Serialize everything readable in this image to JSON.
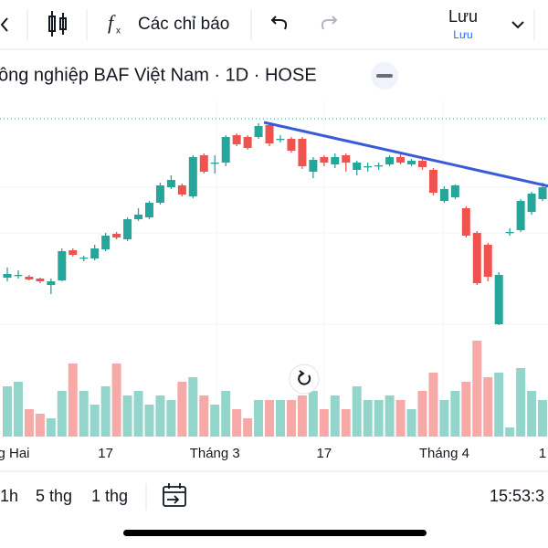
{
  "toolbar": {
    "indicators": "Các chỉ báo",
    "save": "Lưu",
    "save_sub": "Lưu"
  },
  "legend": {
    "title": "ông nghiệp BAF Việt Nam · 1D · HOSE"
  },
  "footer": {
    "ranges": [
      "1h",
      "5 thg",
      "1 thg"
    ],
    "time": "15:53:3"
  },
  "chart_data": {
    "type": "candlestick",
    "categories": [
      "g Hai",
      null,
      null,
      null,
      null,
      null,
      null,
      null,
      null,
      "17",
      null,
      null,
      null,
      null,
      null,
      null,
      null,
      null,
      null,
      "Tháng 3",
      null,
      null,
      null,
      null,
      null,
      null,
      null,
      null,
      null,
      "17",
      null,
      null,
      null,
      null,
      null,
      null,
      null,
      null,
      null,
      null,
      "Tháng 4",
      null,
      null,
      null,
      null,
      null,
      null,
      null,
      null,
      "1"
    ],
    "open": [
      96,
      99,
      97,
      95,
      88,
      93,
      126,
      117,
      117,
      127,
      144,
      138,
      160,
      162,
      178,
      195,
      197,
      185,
      230,
      222,
      222,
      252,
      250,
      250,
      263,
      248,
      248,
      248,
      212,
      228,
      220,
      230,
      214,
      218,
      218,
      220,
      228,
      220,
      224,
      214,
      180,
      184,
      172,
      145,
      132,
      45,
      145,
      148,
      168,
      182
    ],
    "high": [
      107,
      104,
      99,
      96,
      95,
      128,
      128,
      120,
      132,
      145,
      146,
      162,
      172,
      180,
      200,
      208,
      199,
      230,
      232,
      230,
      252,
      254,
      252,
      265,
      265,
      252,
      250,
      250,
      228,
      230,
      232,
      232,
      224,
      222,
      222,
      230,
      232,
      226,
      226,
      216,
      196,
      198,
      174,
      147,
      134,
      102,
      150,
      182,
      190,
      200
    ],
    "low": [
      92,
      95,
      93,
      90,
      78,
      92,
      119,
      114,
      115,
      125,
      138,
      136,
      158,
      160,
      176,
      193,
      185,
      183,
      210,
      210,
      218,
      240,
      236,
      248,
      240,
      244,
      233,
      215,
      205,
      218,
      216,
      212,
      208,
      212,
      214,
      218,
      220,
      218,
      214,
      186,
      178,
      182,
      140,
      88,
      92,
      44,
      142,
      146,
      165,
      180
    ],
    "close": [
      100,
      99,
      94,
      92,
      92,
      125,
      121,
      118,
      128,
      142,
      140,
      160,
      165,
      178,
      197,
      203,
      187,
      228,
      212,
      222,
      250,
      242,
      238,
      262,
      243,
      248,
      235,
      218,
      225,
      222,
      228,
      222,
      222,
      218,
      219,
      228,
      222,
      224,
      217,
      189,
      193,
      197,
      142,
      90,
      97,
      99,
      146,
      180,
      188,
      195
    ],
    "volume": [
      55,
      60,
      30,
      25,
      20,
      50,
      80,
      50,
      35,
      55,
      80,
      45,
      50,
      35,
      45,
      40,
      60,
      65,
      45,
      35,
      50,
      30,
      20,
      40,
      40,
      40,
      40,
      45,
      50,
      30,
      45,
      30,
      55,
      40,
      40,
      45,
      40,
      30,
      50,
      70,
      40,
      50,
      60,
      105,
      65,
      70,
      10,
      75,
      50,
      40
    ],
    "up_color": "#26a69a",
    "down_color": "#ef5350",
    "up_volume_color": "#93d5ca",
    "down_volume_color": "#f7a9a7",
    "ylim": [
      40,
      280
    ],
    "volume_lim": [
      0,
      370
    ],
    "price_line": 270,
    "trendline": {
      "color": "#3a5bd9",
      "start": [
        23.5,
        266
      ],
      "end": [
        50,
        195
      ]
    }
  }
}
